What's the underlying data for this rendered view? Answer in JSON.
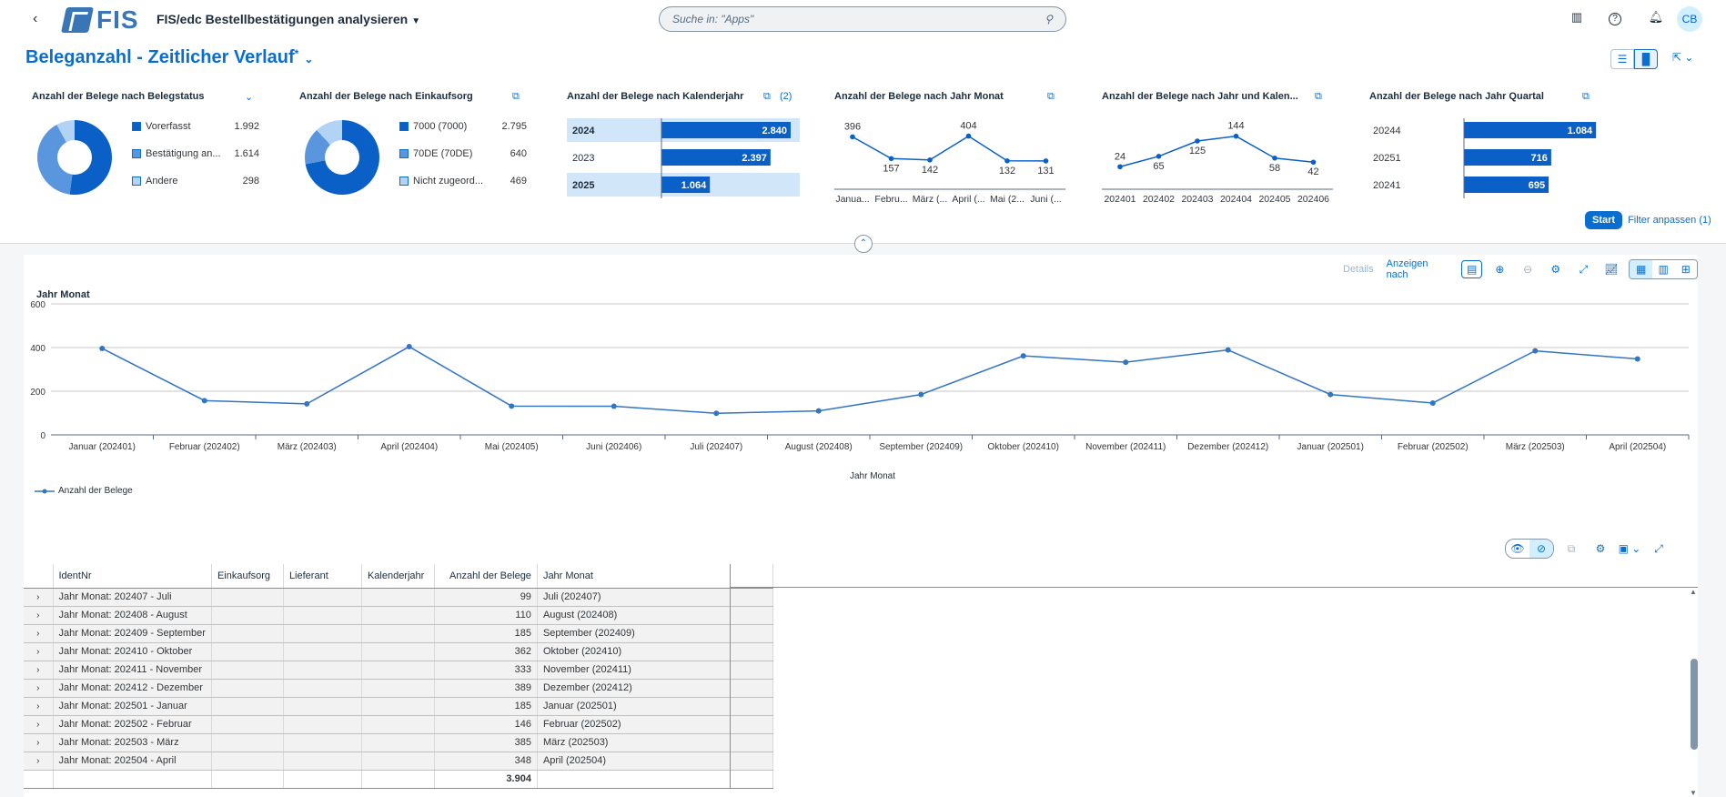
{
  "shell": {
    "logo_text": "FIS",
    "app_title": "FIS/edc Bestellbestätigungen analysieren",
    "search_placeholder": "Suche in: \"Apps\"",
    "avatar": "CB",
    "icons": [
      "book-icon",
      "help-icon",
      "bell-icon"
    ]
  },
  "header": {
    "title": "Beleganzahl - Zeitlicher Verlauf",
    "dirty_marker": "*",
    "start_label": "Start",
    "filter_label": "Filter anpassen (1)"
  },
  "cards": [
    {
      "title": "Anzahl der Belege nach Belegstatus",
      "legend": [
        {
          "label": "Vorerfasst",
          "value": "1.992",
          "color": "#0a60c7"
        },
        {
          "label": "Bestätigung an...",
          "value": "1.614",
          "color": "#5a96dd"
        },
        {
          "label": "Andere",
          "value": "298",
          "color": "#b3d3f5"
        }
      ]
    },
    {
      "title": "Anzahl der Belege nach Einkaufsorg",
      "legend": [
        {
          "label": "7000 (7000)",
          "value": "2.795",
          "color": "#0a60c7"
        },
        {
          "label": "70DE (70DE)",
          "value": "640",
          "color": "#5a96dd"
        },
        {
          "label": "Nicht zugeord...",
          "value": "469",
          "color": "#b3d3f5"
        }
      ]
    },
    {
      "title": "Anzahl der Belege nach Kalenderjahr",
      "badge": "(2)",
      "rows": [
        {
          "label": "2024",
          "value": 2840,
          "display": "2.840",
          "selected": true
        },
        {
          "label": "2023",
          "value": 2397,
          "display": "2.397",
          "selected": false
        },
        {
          "label": "2025",
          "value": 1064,
          "display": "1.064",
          "selected": true
        }
      ]
    },
    {
      "title": "Anzahl der Belege nach Jahr Monat",
      "labels": [
        "Janua...",
        "Febru...",
        "März (...",
        "April (...",
        "Mai (2...",
        "Juni (..."
      ],
      "values": [
        396,
        157,
        142,
        404,
        132,
        131
      ]
    },
    {
      "title": "Anzahl der Belege nach Jahr und Kalen...",
      "labels": [
        "202401",
        "202402",
        "202403",
        "202404",
        "202405",
        "202406"
      ],
      "values": [
        24,
        65,
        125,
        144,
        58,
        42
      ]
    },
    {
      "title": "Anzahl der Belege nach Jahr Quartal",
      "rows": [
        {
          "label": "20244",
          "value": 1084,
          "display": "1.084"
        },
        {
          "label": "20251",
          "value": 716,
          "display": "716"
        },
        {
          "label": "20241",
          "value": 695,
          "display": "695"
        }
      ]
    }
  ],
  "chart_toolbar": {
    "details": "Details",
    "show_by": "Anzeigen nach"
  },
  "chart_data": {
    "type": "line",
    "title": "Jahr Monat",
    "xlabel": "Jahr Monat",
    "ylabel": "",
    "ylim": [
      0,
      600
    ],
    "yticks": [
      0,
      200,
      400,
      600
    ],
    "categories": [
      "Januar (202401)",
      "Februar (202402)",
      "März (202403)",
      "April (202404)",
      "Mai (202405)",
      "Juni (202406)",
      "Juli (202407)",
      "August (202408)",
      "September (202409)",
      "Oktober (202410)",
      "November (202411)",
      "Dezember (202412)",
      "Januar (202501)",
      "Februar (202502)",
      "März (202503)",
      "April (202504)"
    ],
    "series": [
      {
        "name": "Anzahl der Belege",
        "values": [
          396,
          157,
          142,
          404,
          132,
          131,
          99,
          110,
          185,
          362,
          333,
          389,
          185,
          146,
          385,
          348
        ]
      }
    ],
    "color": "#3275c3",
    "grid": true,
    "legend_position": "bottom-left"
  },
  "table": {
    "columns": [
      "IdentNr",
      "Einkaufsorg",
      "Lieferant",
      "Kalenderjahr",
      "Anzahl der Belege",
      "Jahr Monat"
    ],
    "rows": [
      {
        "ident": "Jahr Monat: 202407 - Juli",
        "count": "99",
        "month": "Juli (202407)"
      },
      {
        "ident": "Jahr Monat: 202408 - August",
        "count": "110",
        "month": "August (202408)"
      },
      {
        "ident": "Jahr Monat: 202409 - September",
        "count": "185",
        "month": "September (202409)"
      },
      {
        "ident": "Jahr Monat: 202410 - Oktober",
        "count": "362",
        "month": "Oktober (202410)"
      },
      {
        "ident": "Jahr Monat: 202411 - November",
        "count": "333",
        "month": "November (202411)"
      },
      {
        "ident": "Jahr Monat: 202412 - Dezember",
        "count": "389",
        "month": "Dezember (202412)"
      },
      {
        "ident": "Jahr Monat: 202501 - Januar",
        "count": "185",
        "month": "Januar (202501)"
      },
      {
        "ident": "Jahr Monat: 202502 - Februar",
        "count": "146",
        "month": "Februar (202502)"
      },
      {
        "ident": "Jahr Monat: 202503 - März",
        "count": "385",
        "month": "März (202503)"
      },
      {
        "ident": "Jahr Monat: 202504 - April",
        "count": "348",
        "month": "April (202504)"
      }
    ],
    "total": "3.904"
  }
}
